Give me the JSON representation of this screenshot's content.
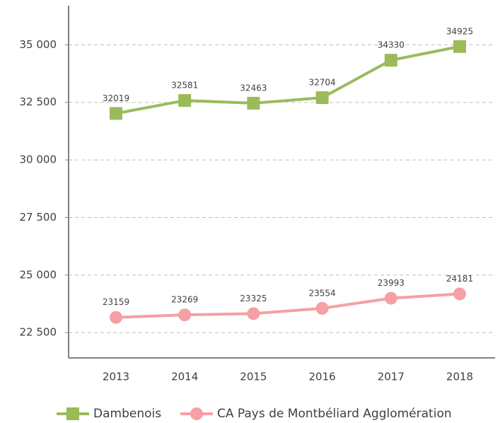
{
  "chart_data": {
    "type": "line",
    "categories": [
      "2013",
      "2014",
      "2015",
      "2016",
      "2017",
      "2018"
    ],
    "series": [
      {
        "name": "Dambenois",
        "color": "#9bbb59",
        "marker": "square",
        "values": [
          32019,
          32581,
          32463,
          32704,
          34330,
          34925
        ]
      },
      {
        "name": "CA Pays de Montbéliard Agglomération",
        "color": "#f4a0a5",
        "marker": "circle",
        "values": [
          23159,
          23269,
          23325,
          23554,
          23993,
          24181
        ]
      }
    ],
    "ylim": [
      21400,
      36700
    ],
    "yticks": [
      {
        "value": 22500,
        "label": "22 500"
      },
      {
        "value": 25000,
        "label": "25 000"
      },
      {
        "value": 27500,
        "label": "27 500"
      },
      {
        "value": 30000,
        "label": "30 000"
      },
      {
        "value": 32500,
        "label": "32 500"
      },
      {
        "value": 35000,
        "label": "35 000"
      }
    ],
    "grid": true,
    "legend": "bottom"
  }
}
